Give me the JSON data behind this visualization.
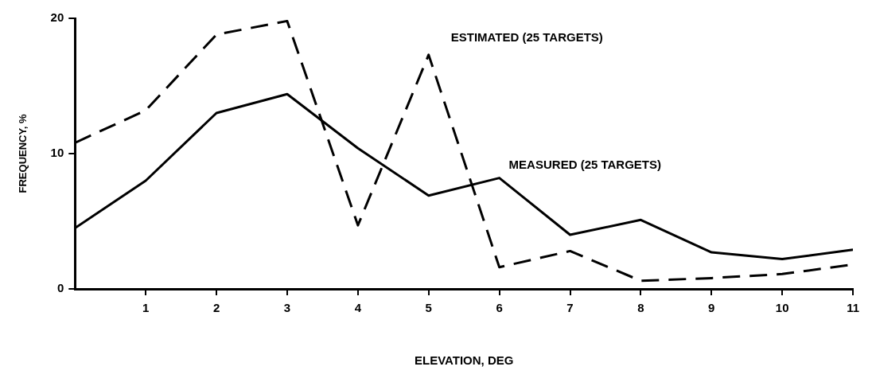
{
  "chart_data": {
    "type": "line",
    "xlabel": "ELEVATION, DEG",
    "ylabel": "FREQUENCY, %",
    "x": [
      0,
      1,
      2,
      3,
      4,
      5,
      6,
      7,
      8,
      9,
      10,
      11
    ],
    "series": [
      {
        "name": "MEASURED (25 TARGETS)",
        "color": "#000000",
        "line_style": "solid",
        "values": [
          4.5,
          8,
          13,
          14.4,
          10.4,
          6.9,
          8.2,
          4,
          5.1,
          2.7,
          2.2,
          2.9
        ]
      },
      {
        "name": "ESTIMATED (25 TARGETS)",
        "color": "#000000",
        "line_style": "dashed",
        "values": [
          10.8,
          13.2,
          18.8,
          19.8,
          4.7,
          17.3,
          1.6,
          2.8,
          0.6,
          0.8,
          1.1,
          1.8
        ]
      }
    ],
    "xlim": [
      0,
      11
    ],
    "xticks": [
      1,
      2,
      3,
      4,
      5,
      6,
      7,
      8,
      9,
      10,
      11
    ],
    "ylim": [
      0,
      20
    ],
    "yticks": [
      0,
      10,
      20
    ],
    "grid": false,
    "legend": false,
    "marker": "none"
  }
}
